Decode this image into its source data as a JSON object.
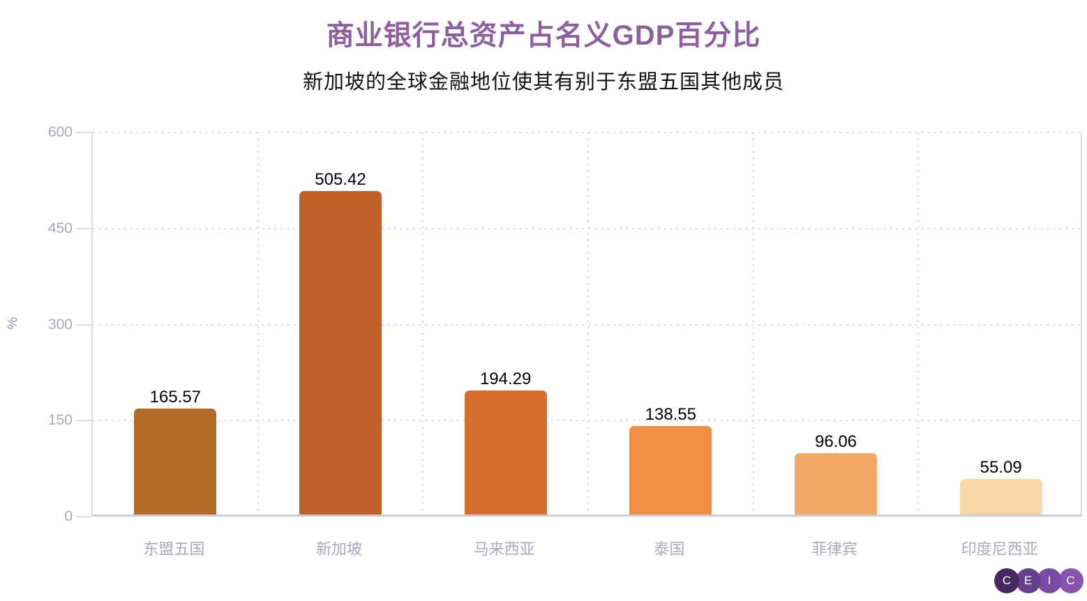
{
  "header": {
    "title": "商业银行总资产占名义GDP百分比",
    "subtitle": "新加坡的全球金融地位使其有别于东盟五国其他成员",
    "title_color": "#8d5f9f"
  },
  "chart_data": {
    "type": "bar",
    "title": "商业银行总资产占名义GDP百分比",
    "subtitle": "新加坡的全球金融地位使其有别于东盟五国其他成员",
    "categories": [
      "东盟五国",
      "新加坡",
      "马来西亚",
      "泰国",
      "菲律宾",
      "印度尼西亚"
    ],
    "values": [
      165.57,
      505.42,
      194.29,
      138.55,
      96.06,
      55.09
    ],
    "value_labels": [
      "165.57",
      "505.42",
      "194.29",
      "138.55",
      "96.06",
      "55.09"
    ],
    "bar_colors": [
      "#b36a28",
      "#c06029",
      "#d76d2e",
      "#f08e42",
      "#f3a865",
      "#f8d8a8"
    ],
    "xlabel": "",
    "ylabel": "%",
    "ylim": [
      0,
      600
    ],
    "yticks": [
      0,
      150,
      300,
      450,
      600
    ],
    "grid": "dotted horizontal gridlines at each y tick and dotted vertical separators between category bands",
    "legend_position": "none",
    "value_label_color": "#000000",
    "axis_text_color": "#a9a9bb"
  },
  "logo": {
    "name": "CEIC",
    "letters": [
      "C",
      "E",
      "I",
      "C"
    ],
    "circle_colors": [
      "#46285f",
      "#66408c",
      "#7c4aa2",
      "#8a53ae"
    ]
  }
}
